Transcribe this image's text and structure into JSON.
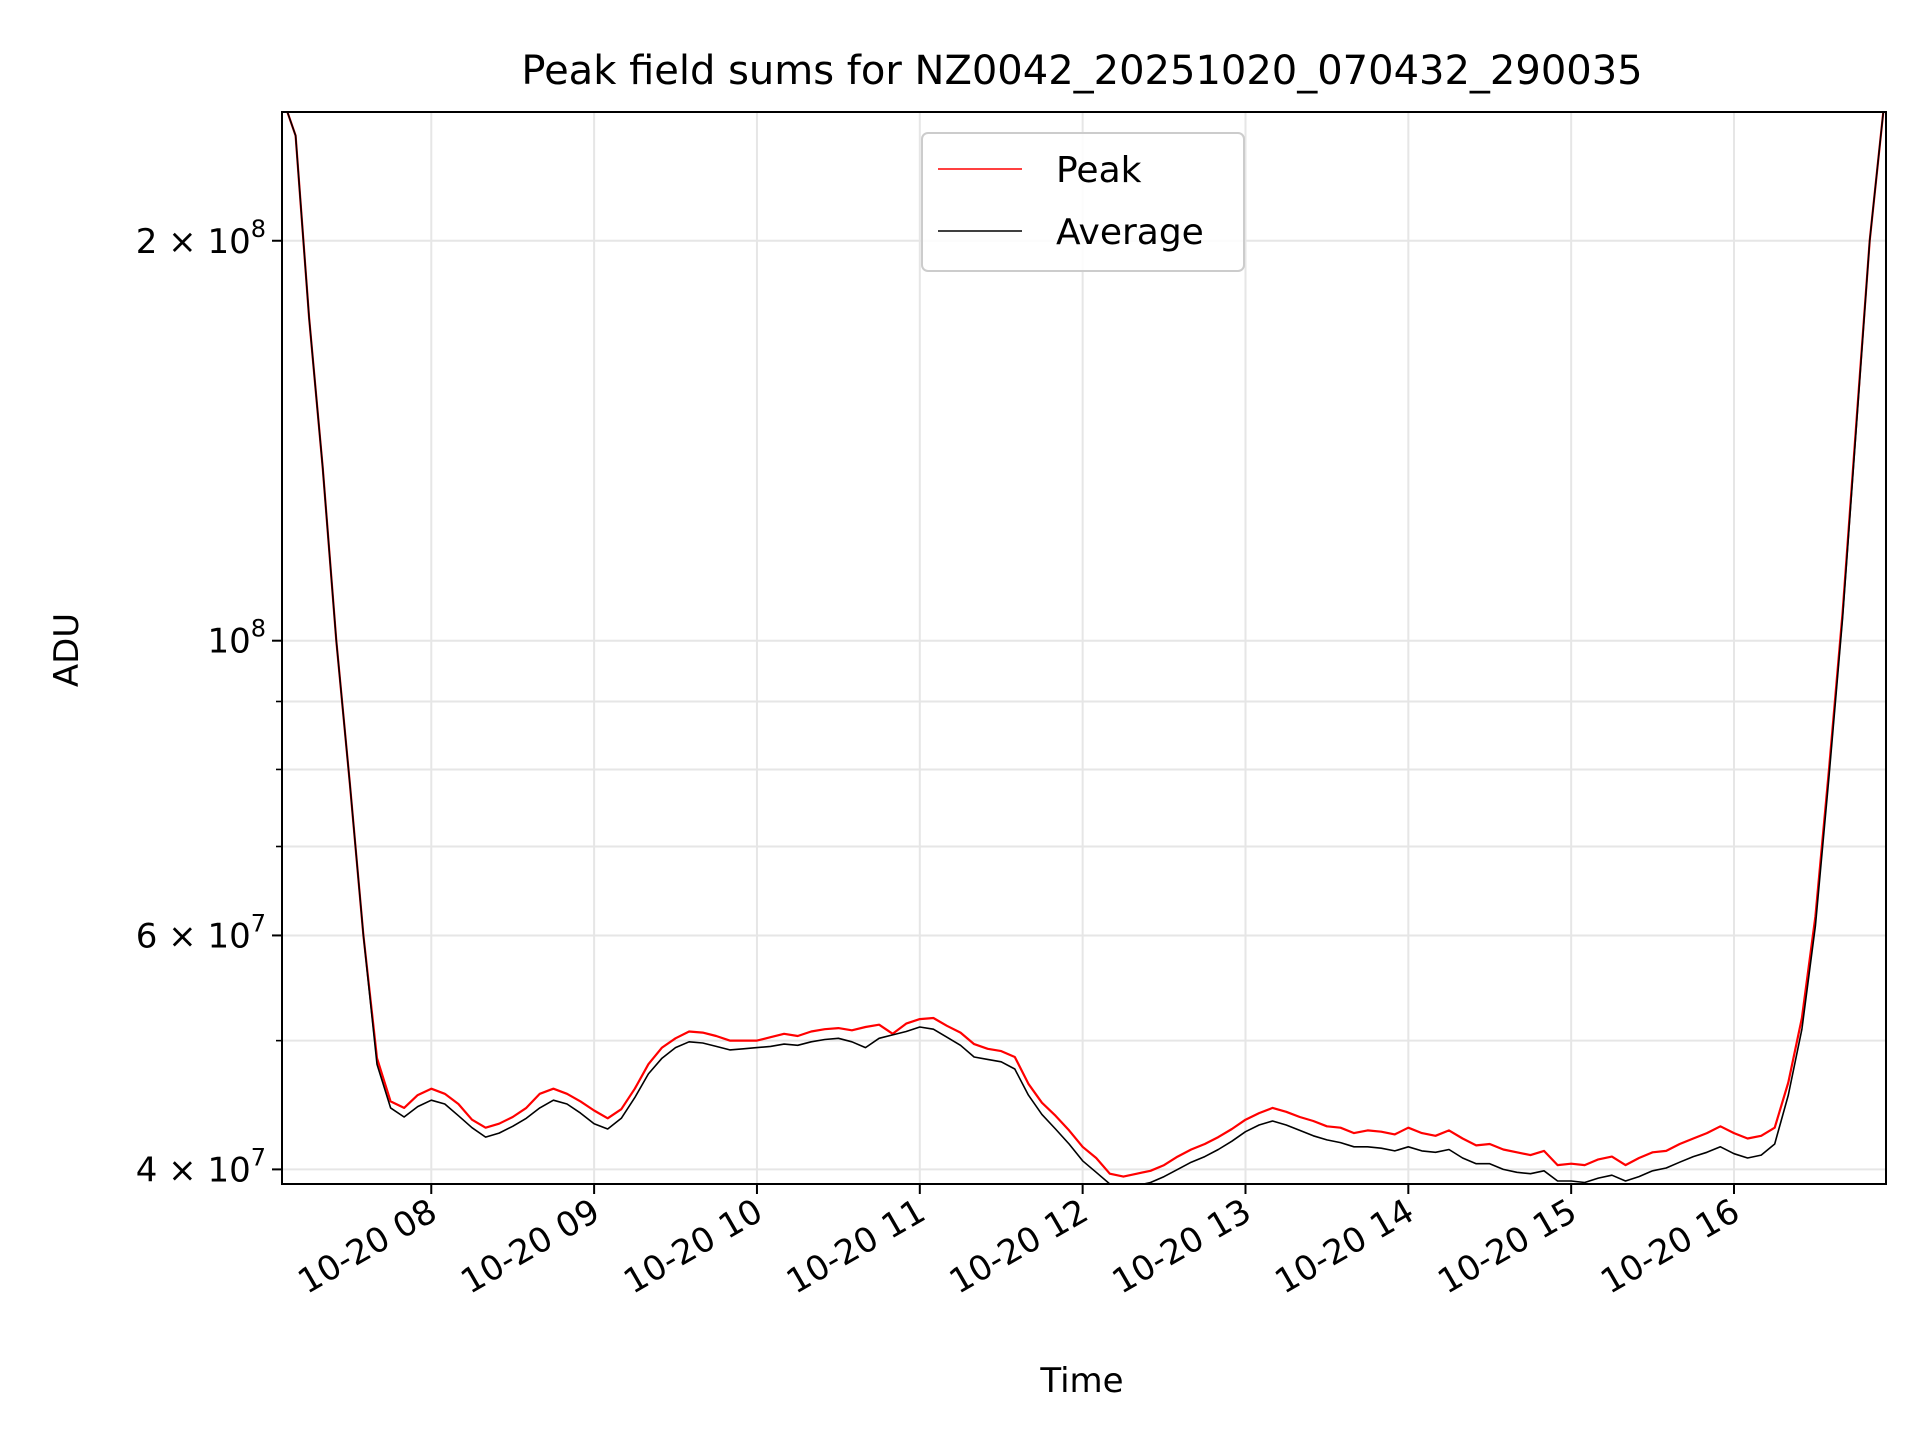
{
  "chart_data": {
    "type": "line",
    "title": "Peak field sums for NZ0042_20251020_070432_290035",
    "xlabel": "Time",
    "ylabel": "ADU",
    "y_scale": "log",
    "ylim": [
      39000000,
      250000000
    ],
    "xlim": [
      "2025-10-20T07:05",
      "2025-10-20T16:56"
    ],
    "grid": true,
    "legend_position": "upper center",
    "x_ticks": [
      {
        "t": "2025-10-20T08:00",
        "label": "10-20 08"
      },
      {
        "t": "2025-10-20T09:00",
        "label": "10-20 09"
      },
      {
        "t": "2025-10-20T10:00",
        "label": "10-20 10"
      },
      {
        "t": "2025-10-20T11:00",
        "label": "10-20 11"
      },
      {
        "t": "2025-10-20T12:00",
        "label": "10-20 12"
      },
      {
        "t": "2025-10-20T13:00",
        "label": "10-20 13"
      },
      {
        "t": "2025-10-20T14:00",
        "label": "10-20 14"
      },
      {
        "t": "2025-10-20T15:00",
        "label": "10-20 15"
      },
      {
        "t": "2025-10-20T16:00",
        "label": "10-20 16"
      }
    ],
    "y_ticks": [
      {
        "v": 40000000,
        "base": "4 × 10",
        "exp": "7"
      },
      {
        "v": 60000000,
        "base": "6 × 10",
        "exp": "7"
      },
      {
        "v": 100000000,
        "base": "10",
        "exp": "8"
      },
      {
        "v": 200000000,
        "base": "2 × 10",
        "exp": "8"
      }
    ],
    "y_minor_ticks": [
      50000000,
      70000000,
      80000000,
      90000000
    ],
    "x": [
      "07:07",
      "07:10",
      "07:15",
      "07:20",
      "07:25",
      "07:30",
      "07:35",
      "07:40",
      "07:45",
      "07:50",
      "07:55",
      "08:00",
      "08:05",
      "08:10",
      "08:15",
      "08:20",
      "08:25",
      "08:30",
      "08:35",
      "08:40",
      "08:45",
      "08:50",
      "08:55",
      "09:00",
      "09:05",
      "09:10",
      "09:15",
      "09:20",
      "09:25",
      "09:30",
      "09:35",
      "09:40",
      "09:45",
      "09:50",
      "09:55",
      "10:00",
      "10:05",
      "10:10",
      "10:15",
      "10:20",
      "10:25",
      "10:30",
      "10:35",
      "10:40",
      "10:45",
      "10:50",
      "10:55",
      "11:00",
      "11:05",
      "11:10",
      "11:15",
      "11:20",
      "11:25",
      "11:30",
      "11:35",
      "11:40",
      "11:45",
      "11:50",
      "11:55",
      "12:00",
      "12:05",
      "12:10",
      "12:15",
      "12:20",
      "12:25",
      "12:30",
      "12:35",
      "12:40",
      "12:45",
      "12:50",
      "12:55",
      "13:00",
      "13:05",
      "13:10",
      "13:15",
      "13:20",
      "13:25",
      "13:30",
      "13:35",
      "13:40",
      "13:45",
      "13:50",
      "13:55",
      "14:00",
      "14:05",
      "14:10",
      "14:15",
      "14:20",
      "14:25",
      "14:30",
      "14:35",
      "14:40",
      "14:45",
      "14:50",
      "14:55",
      "15:00",
      "15:05",
      "15:10",
      "15:15",
      "15:20",
      "15:25",
      "15:30",
      "15:35",
      "15:40",
      "15:45",
      "15:50",
      "15:55",
      "16:00",
      "16:05",
      "16:10",
      "16:15",
      "16:20",
      "16:25",
      "16:30",
      "16:35",
      "16:40",
      "16:45",
      "16:50",
      "16:55"
    ],
    "series": [
      {
        "name": "Peak",
        "color": "#ff0000",
        "values": [
          250000000,
          240000000,
          175000000,
          135000000,
          100000000,
          78000000,
          60000000,
          48500000,
          45000000,
          44500000,
          45500000,
          46000000,
          45600000,
          44800000,
          43600000,
          43000000,
          43300000,
          43800000,
          44500000,
          45600000,
          46000000,
          45600000,
          45000000,
          44300000,
          43700000,
          44400000,
          46000000,
          48000000,
          49400000,
          50200000,
          50800000,
          50700000,
          50400000,
          50000000,
          50000000,
          50000000,
          50300000,
          50600000,
          50400000,
          50800000,
          51000000,
          51100000,
          50900000,
          51200000,
          51400000,
          50600000,
          51500000,
          51900000,
          52000000,
          51300000,
          50700000,
          49700000,
          49300000,
          49100000,
          48600000,
          46400000,
          44900000,
          43900000,
          42800000,
          41600000,
          40800000,
          39700000,
          39500000,
          39700000,
          39900000,
          40300000,
          40900000,
          41400000,
          41800000,
          42300000,
          42900000,
          43600000,
          44100000,
          44500000,
          44200000,
          43800000,
          43500000,
          43100000,
          43000000,
          42600000,
          42800000,
          42700000,
          42500000,
          43000000,
          42600000,
          42400000,
          42800000,
          42200000,
          41700000,
          41800000,
          41400000,
          41200000,
          41000000,
          41300000,
          40300000,
          40400000,
          40300000,
          40700000,
          40900000,
          40300000,
          40800000,
          41200000,
          41300000,
          41800000,
          42200000,
          42600000,
          43100000,
          42600000,
          42200000,
          42400000,
          43000000,
          46500000,
          52000000,
          62000000,
          80000000,
          105000000,
          145000000,
          200000000,
          250000000
        ]
      },
      {
        "name": "Average",
        "color": "#000000",
        "values": [
          250000000,
          240000000,
          175000000,
          135000000,
          100000000,
          78000000,
          60000000,
          48000000,
          44500000,
          43800000,
          44600000,
          45100000,
          44800000,
          43900000,
          43000000,
          42300000,
          42600000,
          43100000,
          43700000,
          44500000,
          45100000,
          44800000,
          44100000,
          43300000,
          42900000,
          43700000,
          45300000,
          47200000,
          48500000,
          49400000,
          49900000,
          49800000,
          49500000,
          49200000,
          49300000,
          49400000,
          49500000,
          49700000,
          49600000,
          49900000,
          50100000,
          50200000,
          49900000,
          49400000,
          50200000,
          50500000,
          50800000,
          51200000,
          51000000,
          50300000,
          49600000,
          48600000,
          48400000,
          48200000,
          47600000,
          45500000,
          44000000,
          42900000,
          41800000,
          40600000,
          39800000,
          39000000,
          38800000,
          38900000,
          39100000,
          39500000,
          40000000,
          40500000,
          40900000,
          41400000,
          42000000,
          42700000,
          43200000,
          43500000,
          43200000,
          42800000,
          42400000,
          42100000,
          41900000,
          41600000,
          41600000,
          41500000,
          41300000,
          41600000,
          41300000,
          41200000,
          41400000,
          40800000,
          40400000,
          40400000,
          40000000,
          39800000,
          39700000,
          39900000,
          39200000,
          39200000,
          39100000,
          39400000,
          39600000,
          39200000,
          39500000,
          39900000,
          40100000,
          40500000,
          40900000,
          41200000,
          41600000,
          41100000,
          40800000,
          41000000,
          41800000,
          45500000,
          51000000,
          61000000,
          79000000,
          104000000,
          144000000,
          200000000,
          250000000
        ]
      }
    ]
  }
}
